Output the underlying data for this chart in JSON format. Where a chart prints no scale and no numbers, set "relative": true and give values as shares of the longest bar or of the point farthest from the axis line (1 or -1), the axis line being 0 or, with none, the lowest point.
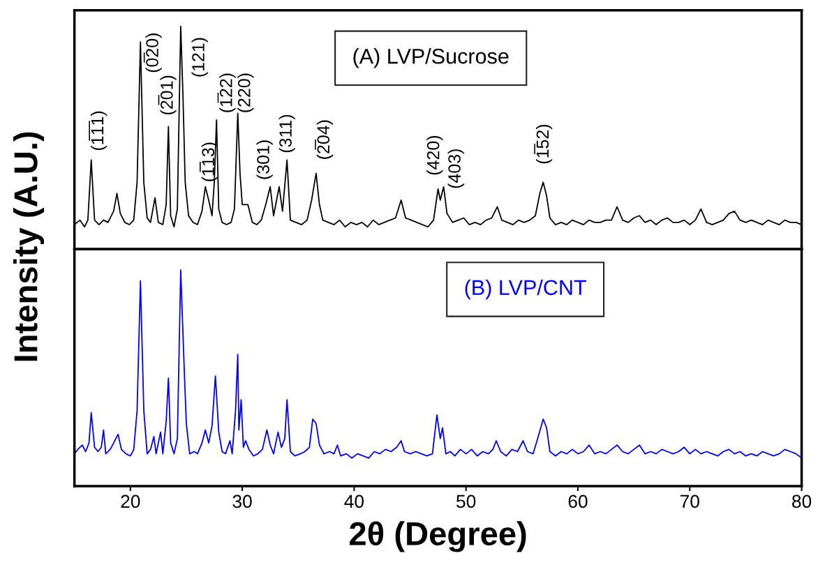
{
  "chart_data": [
    {
      "type": "line",
      "relative": true,
      "ylabel": "Intensity (A.U.)",
      "xlim": [
        15,
        80
      ],
      "tick_labels": false,
      "series": [
        {
          "name": "(A) LVP/Sucrose",
          "color": "#000000",
          "x": [
            15.0,
            15.5,
            15.9,
            16.2,
            16.5,
            16.8,
            17.2,
            17.6,
            18.0,
            18.5,
            18.8,
            19.1,
            19.5,
            19.9,
            20.3,
            20.6,
            20.9,
            21.2,
            21.5,
            21.8,
            22.2,
            22.5,
            22.9,
            23.2,
            23.4,
            23.6,
            23.9,
            24.2,
            24.5,
            24.7,
            24.9,
            25.2,
            25.6,
            26.0,
            26.4,
            26.7,
            27.0,
            27.3,
            27.5,
            27.7,
            27.9,
            28.2,
            28.6,
            29.0,
            29.3,
            29.6,
            29.8,
            30.0,
            30.5,
            30.9,
            31.3,
            31.7,
            32.1,
            32.5,
            32.8,
            33.3,
            33.6,
            34.0,
            34.3,
            34.8,
            35.3,
            35.8,
            36.2,
            36.6,
            36.9,
            37.2,
            37.7,
            38.2,
            38.7,
            39.2,
            39.7,
            40.2,
            40.7,
            41.2,
            41.7,
            42.2,
            42.7,
            43.2,
            43.7,
            44.2,
            44.6,
            45.1,
            45.6,
            46.1,
            46.6,
            47.1,
            47.5,
            47.7,
            48.0,
            48.3,
            48.8,
            49.3,
            49.8,
            50.3,
            50.8,
            51.3,
            51.8,
            52.3,
            52.8,
            53.2,
            53.7,
            54.2,
            54.7,
            55.2,
            55.7,
            56.2,
            56.6,
            56.9,
            57.2,
            57.5,
            58.0,
            58.5,
            59.0,
            59.5,
            60.0,
            60.5,
            61.0,
            61.5,
            62.0,
            62.5,
            63.0,
            63.5,
            64.0,
            64.5,
            65.0,
            65.5,
            66.0,
            66.5,
            67.0,
            67.5,
            68.0,
            68.5,
            69.0,
            69.5,
            70.0,
            70.5,
            71.0,
            71.5,
            72.0,
            72.5,
            73.0,
            73.5,
            74.0,
            74.5,
            75.0,
            75.5,
            76.0,
            76.5,
            77.0,
            77.5,
            78.0,
            78.5,
            79.0,
            79.5,
            80.0
          ],
          "values": [
            0.11,
            0.13,
            0.1,
            0.13,
            0.4,
            0.13,
            0.11,
            0.13,
            0.12,
            0.17,
            0.25,
            0.16,
            0.12,
            0.11,
            0.13,
            0.3,
            0.93,
            0.3,
            0.14,
            0.12,
            0.23,
            0.12,
            0.11,
            0.2,
            0.55,
            0.15,
            0.1,
            0.18,
            1.0,
            0.69,
            0.3,
            0.15,
            0.12,
            0.11,
            0.17,
            0.28,
            0.22,
            0.15,
            0.3,
            0.58,
            0.18,
            0.12,
            0.11,
            0.12,
            0.18,
            0.61,
            0.34,
            0.2,
            0.2,
            0.12,
            0.11,
            0.13,
            0.2,
            0.28,
            0.15,
            0.28,
            0.17,
            0.4,
            0.13,
            0.12,
            0.11,
            0.13,
            0.22,
            0.34,
            0.2,
            0.13,
            0.12,
            0.11,
            0.13,
            0.1,
            0.12,
            0.11,
            0.12,
            0.1,
            0.13,
            0.11,
            0.12,
            0.13,
            0.14,
            0.22,
            0.14,
            0.13,
            0.12,
            0.11,
            0.1,
            0.13,
            0.27,
            0.22,
            0.28,
            0.16,
            0.12,
            0.13,
            0.14,
            0.11,
            0.12,
            0.11,
            0.13,
            0.14,
            0.19,
            0.13,
            0.12,
            0.11,
            0.13,
            0.12,
            0.13,
            0.15,
            0.25,
            0.3,
            0.24,
            0.14,
            0.11,
            0.12,
            0.11,
            0.13,
            0.12,
            0.11,
            0.13,
            0.12,
            0.12,
            0.13,
            0.13,
            0.19,
            0.13,
            0.12,
            0.14,
            0.15,
            0.12,
            0.13,
            0.11,
            0.13,
            0.14,
            0.12,
            0.12,
            0.13,
            0.11,
            0.13,
            0.18,
            0.12,
            0.11,
            0.12,
            0.13,
            0.16,
            0.17,
            0.13,
            0.12,
            0.13,
            0.12,
            0.11,
            0.13,
            0.12,
            0.11,
            0.13,
            0.12,
            0.12,
            0.11
          ]
        }
      ],
      "annotations": [
        {
          "text": "(1̅1̅1)",
          "x": 16.5,
          "y": 0.4
        },
        {
          "text": "(0̅20)",
          "x": 20.9,
          "y": 0.93
        },
        {
          "text": "(2̅01)",
          "x": 23.4,
          "y": 0.55
        },
        {
          "text": "(121)",
          "x": 24.5,
          "y": 1.0
        },
        {
          "text": "(1̅13)",
          "x": 26.7,
          "y": 0.28
        },
        {
          "text": "(1̅22)",
          "x": 27.7,
          "y": 0.58
        },
        {
          "text": "(220)",
          "x": 29.6,
          "y": 0.61
        },
        {
          "text": "(301)",
          "x": 32.5,
          "y": 0.28
        },
        {
          "text": "(311)",
          "x": 34.0,
          "y": 0.4
        },
        {
          "text": "(2̅04)",
          "x": 36.6,
          "y": 0.34
        },
        {
          "text": "(420)",
          "x": 47.5,
          "y": 0.27
        },
        {
          "text": "(403)",
          "x": 48.0,
          "y": 0.28
        },
        {
          "text": "(1̅52)",
          "x": 56.9,
          "y": 0.3
        }
      ]
    },
    {
      "type": "line",
      "relative": true,
      "xlabel": "2θ (Degree)",
      "xlim": [
        15,
        80
      ],
      "xticks": [
        20,
        30,
        40,
        50,
        60,
        70,
        80
      ],
      "tick_labels": "x",
      "series": [
        {
          "name": "(B) LVP/CNT",
          "color": "#0000ff",
          "x": [
            15.0,
            15.3,
            15.7,
            16.0,
            16.3,
            16.5,
            16.8,
            17.1,
            17.4,
            17.6,
            17.8,
            18.2,
            18.5,
            18.9,
            19.2,
            19.6,
            20.0,
            20.3,
            20.6,
            20.9,
            21.2,
            21.5,
            21.8,
            22.1,
            22.3,
            22.7,
            22.9,
            23.2,
            23.4,
            23.6,
            23.9,
            24.2,
            24.5,
            24.8,
            25.0,
            25.3,
            25.7,
            26.0,
            26.4,
            26.7,
            27.0,
            27.3,
            27.6,
            27.9,
            28.2,
            28.5,
            28.9,
            29.1,
            29.4,
            29.6,
            29.7,
            29.9,
            30.1,
            30.3,
            30.6,
            31.0,
            31.4,
            31.8,
            32.2,
            32.5,
            32.8,
            33.2,
            33.5,
            33.8,
            34.0,
            34.3,
            34.7,
            35.2,
            35.6,
            36.0,
            36.3,
            36.6,
            36.9,
            37.3,
            37.8,
            38.2,
            38.5,
            38.8,
            39.3,
            39.8,
            40.3,
            40.8,
            41.3,
            41.8,
            42.3,
            42.8,
            43.3,
            43.8,
            44.2,
            44.5,
            45.0,
            45.5,
            46.0,
            46.5,
            47.0,
            47.4,
            47.7,
            47.9,
            48.2,
            48.6,
            49.0,
            49.5,
            50.0,
            50.5,
            51.0,
            51.5,
            52.0,
            52.4,
            52.7,
            53.1,
            53.6,
            54.1,
            54.6,
            55.1,
            55.5,
            56.0,
            56.4,
            56.9,
            57.2,
            57.5,
            58.0,
            58.5,
            59.0,
            59.5,
            60.0,
            60.5,
            61.0,
            61.5,
            62.0,
            62.5,
            63.0,
            63.5,
            64.0,
            64.5,
            65.0,
            65.5,
            66.0,
            66.5,
            67.0,
            67.5,
            68.0,
            68.5,
            69.0,
            69.5,
            70.0,
            70.5,
            71.0,
            71.5,
            72.0,
            72.5,
            73.0,
            73.5,
            74.0,
            74.5,
            75.0,
            75.5,
            76.0,
            76.5,
            77.0,
            77.5,
            78.0,
            78.5,
            79.0,
            79.5,
            80.0
          ],
          "values": [
            0.15,
            0.17,
            0.19,
            0.16,
            0.2,
            0.34,
            0.18,
            0.16,
            0.18,
            0.26,
            0.15,
            0.17,
            0.2,
            0.24,
            0.17,
            0.15,
            0.14,
            0.17,
            0.35,
            0.95,
            0.35,
            0.15,
            0.17,
            0.23,
            0.15,
            0.25,
            0.15,
            0.3,
            0.5,
            0.2,
            0.15,
            0.22,
            1.0,
            0.56,
            0.29,
            0.15,
            0.16,
            0.15,
            0.2,
            0.26,
            0.2,
            0.28,
            0.51,
            0.25,
            0.16,
            0.15,
            0.21,
            0.15,
            0.35,
            0.61,
            0.26,
            0.4,
            0.18,
            0.21,
            0.17,
            0.14,
            0.15,
            0.17,
            0.26,
            0.19,
            0.15,
            0.25,
            0.18,
            0.22,
            0.4,
            0.16,
            0.14,
            0.15,
            0.16,
            0.18,
            0.31,
            0.29,
            0.19,
            0.15,
            0.16,
            0.15,
            0.19,
            0.14,
            0.15,
            0.13,
            0.15,
            0.14,
            0.13,
            0.16,
            0.15,
            0.17,
            0.16,
            0.18,
            0.21,
            0.16,
            0.15,
            0.16,
            0.15,
            0.14,
            0.15,
            0.33,
            0.22,
            0.27,
            0.15,
            0.16,
            0.14,
            0.17,
            0.15,
            0.17,
            0.14,
            0.16,
            0.15,
            0.17,
            0.21,
            0.16,
            0.14,
            0.17,
            0.16,
            0.21,
            0.16,
            0.15,
            0.22,
            0.31,
            0.27,
            0.16,
            0.14,
            0.16,
            0.15,
            0.17,
            0.15,
            0.16,
            0.19,
            0.15,
            0.16,
            0.15,
            0.17,
            0.19,
            0.16,
            0.15,
            0.17,
            0.19,
            0.15,
            0.16,
            0.15,
            0.17,
            0.16,
            0.15,
            0.16,
            0.18,
            0.15,
            0.17,
            0.15,
            0.16,
            0.15,
            0.14,
            0.16,
            0.17,
            0.15,
            0.16,
            0.14,
            0.15,
            0.14,
            0.16,
            0.15,
            0.14,
            0.15,
            0.17,
            0.16,
            0.15,
            0.13
          ]
        }
      ]
    }
  ]
}
